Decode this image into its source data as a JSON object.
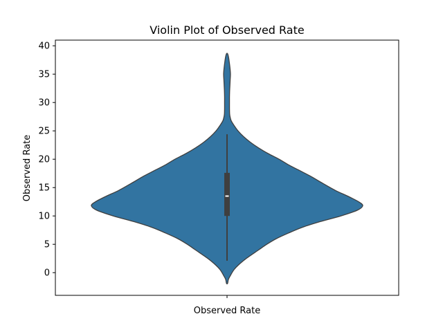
{
  "chart_data": {
    "type": "violin",
    "title": "Violin Plot of Observed Rate",
    "xlabel": "Observed Rate",
    "ylabel": "Observed Rate",
    "categories": [
      "Observed Rate"
    ],
    "ylim": [
      -4,
      41
    ],
    "yticks": [
      0,
      5,
      10,
      15,
      20,
      25,
      30,
      35,
      40
    ],
    "grid": false,
    "color": "#3274a1",
    "summary": {
      "whisker_low": 2.1,
      "q1": 10.0,
      "median": 13.5,
      "q3": 17.6,
      "whisker_high": 24.4
    },
    "density_profile": {
      "y": [
        -1.9,
        -1.2,
        -0.5,
        0.5,
        1.5,
        2.5,
        4,
        5,
        6,
        7,
        8,
        9,
        10,
        11,
        11.8,
        12.5,
        13.5,
        14.5,
        16,
        17,
        18,
        19,
        20,
        21,
        22,
        23,
        24,
        25,
        26,
        26.8,
        27.5,
        28,
        29,
        30,
        31,
        32,
        33,
        34,
        35,
        36,
        37,
        38,
        38.6
      ],
      "width": [
        0.004,
        0.01,
        0.025,
        0.05,
        0.09,
        0.14,
        0.23,
        0.29,
        0.36,
        0.45,
        0.55,
        0.68,
        0.83,
        0.95,
        0.99,
        0.96,
        0.88,
        0.79,
        0.68,
        0.61,
        0.53,
        0.45,
        0.38,
        0.3,
        0.23,
        0.17,
        0.12,
        0.08,
        0.05,
        0.03,
        0.022,
        0.019,
        0.018,
        0.018,
        0.018,
        0.019,
        0.021,
        0.023,
        0.025,
        0.022,
        0.017,
        0.011,
        0.004
      ]
    }
  }
}
